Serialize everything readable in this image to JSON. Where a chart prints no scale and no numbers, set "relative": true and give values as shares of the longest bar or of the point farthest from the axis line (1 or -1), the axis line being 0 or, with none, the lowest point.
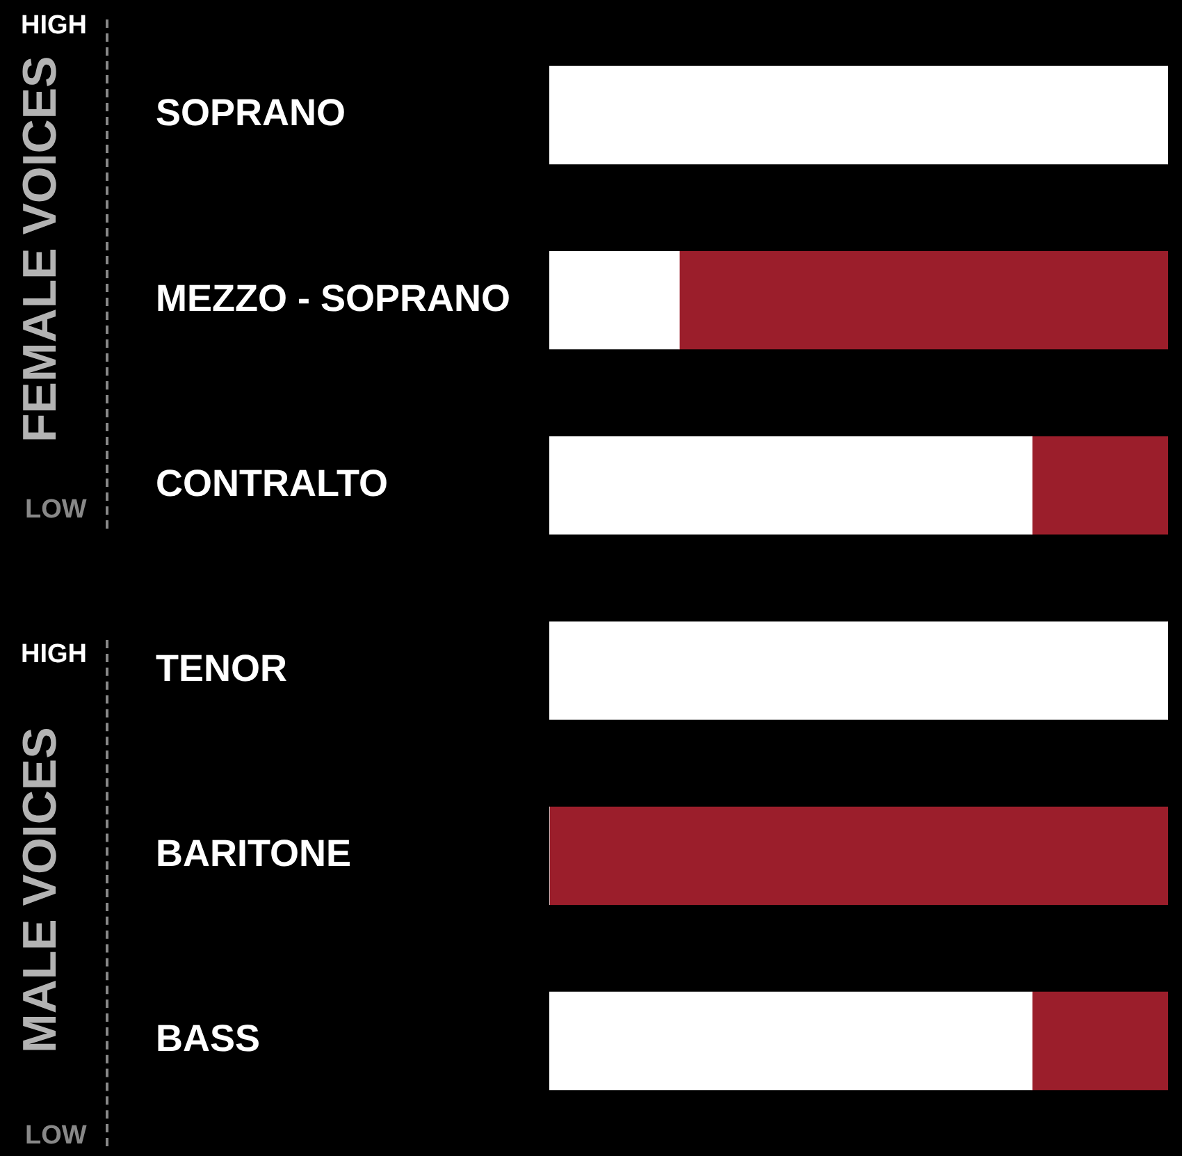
{
  "chart_data": {
    "type": "bar",
    "orientation": "horizontal",
    "stacked": true,
    "relative": true,
    "categories": [
      "SOPRANO",
      "MEZZO - SOPRANO",
      "CONTRALTO",
      "TENOR",
      "BARITONE",
      "BASS"
    ],
    "series": [
      {
        "color": "#ffffff",
        "values": [
          1,
          0.21,
          0.78,
          1,
          0,
          0.78
        ]
      },
      {
        "color": "#9b1e2b",
        "values": [
          0,
          0.79,
          0.22,
          0,
          1,
          0.22
        ]
      }
    ],
    "annotations": [
      "FEMALE VOICES",
      "HIGH",
      "LOW",
      "MALE VOICES",
      "HIGH",
      "LOW"
    ]
  }
}
